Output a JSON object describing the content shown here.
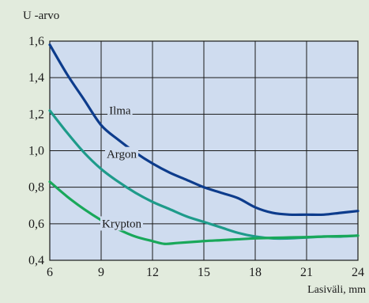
{
  "chart_data": {
    "type": "line",
    "ylabel": "U -arvo",
    "xlabel": "Lasiväli, mm",
    "xlim": [
      6,
      24
    ],
    "ylim": [
      0.4,
      1.6
    ],
    "xticks": [
      6,
      9,
      12,
      15,
      18,
      21,
      24
    ],
    "yticks": [
      0.4,
      0.6,
      0.8,
      1.0,
      1.2,
      1.4,
      1.6
    ],
    "xtick_labels": [
      "6",
      "9",
      "12",
      "15",
      "18",
      "21",
      "24"
    ],
    "ytick_labels": [
      "0,4",
      "0,6",
      "0,8",
      "1,0",
      "1,2",
      "1,4",
      "1,6"
    ],
    "grid": true,
    "plot_background": "#cfdcef",
    "series": [
      {
        "name": "Ilma",
        "color": "#0d3c8c",
        "x": [
          6,
          7,
          8,
          9,
          10,
          11,
          12,
          13,
          14,
          15,
          16,
          17,
          18,
          19,
          20,
          21,
          22,
          23,
          24
        ],
        "y": [
          1.58,
          1.42,
          1.28,
          1.14,
          1.06,
          0.99,
          0.93,
          0.88,
          0.84,
          0.8,
          0.77,
          0.74,
          0.69,
          0.66,
          0.65,
          0.65,
          0.65,
          0.66,
          0.67
        ]
      },
      {
        "name": "Argon",
        "color": "#1e9b8a",
        "x": [
          6,
          7,
          8,
          9,
          10,
          11,
          12,
          13,
          14,
          15,
          16,
          17,
          18,
          19,
          20,
          21,
          22,
          23,
          24
        ],
        "y": [
          1.22,
          1.1,
          0.99,
          0.9,
          0.83,
          0.77,
          0.72,
          0.68,
          0.64,
          0.61,
          0.58,
          0.55,
          0.53,
          0.52,
          0.52,
          0.525,
          0.53,
          0.53,
          0.535
        ]
      },
      {
        "name": "Krypton",
        "color": "#19a85a",
        "x": [
          6,
          7,
          8,
          9,
          10,
          11,
          12,
          12.7,
          13.5,
          15,
          16,
          17,
          18,
          19,
          20,
          21,
          22,
          23,
          24
        ],
        "y": [
          0.83,
          0.75,
          0.68,
          0.62,
          0.57,
          0.53,
          0.505,
          0.49,
          0.495,
          0.505,
          0.51,
          0.515,
          0.52,
          0.523,
          0.525,
          0.527,
          0.53,
          0.532,
          0.535
        ]
      }
    ]
  }
}
